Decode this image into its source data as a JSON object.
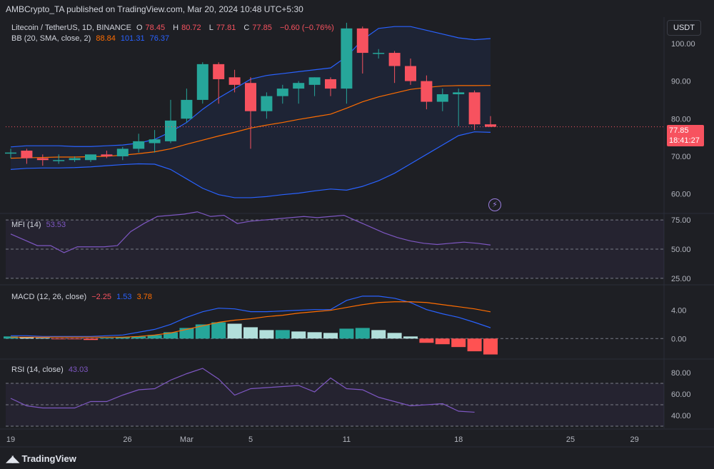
{
  "header": {
    "publisher": "AMBCrypto_TA published on TradingView.com, Mar 20, 2024 10:48 UTC+5:30"
  },
  "currency_button": "USDT",
  "main_legend": {
    "symbol": "Litecoin / TetherUS, 1D, BINANCE",
    "o_label": "O",
    "o_value": "78.45",
    "h_label": "H",
    "h_value": "80.72",
    "l_label": "L",
    "l_value": "77.81",
    "c_label": "C",
    "c_value": "77.85",
    "change": "−0.60 (−0.76%)",
    "bb_label": "BB (20, SMA, close, 2)",
    "bb_basis": "88.84",
    "bb_upper": "101.31",
    "bb_lower": "76.37"
  },
  "price_tag": {
    "price": "77.85",
    "countdown": "18:41:27"
  },
  "mfi_legend": {
    "label": "MFI (14)",
    "value": "53.53"
  },
  "macd_legend": {
    "label": "MACD (12, 26, close)",
    "hist": "−2.25",
    "macd": "1.53",
    "signal": "3.78"
  },
  "rsi_legend": {
    "label": "RSI (14, close)",
    "value": "43.03"
  },
  "brand": "TradingView",
  "colors": {
    "up": "#26a69a",
    "down": "#f7525f",
    "bb_band": "#2962ff",
    "bb_basis": "#ff6d00",
    "osc": "#7e57c2"
  },
  "chart_data": [
    {
      "type": "candlestick",
      "title": "Litecoin / TetherUS, 1D, BINANCE",
      "ylim": [
        55,
        107
      ],
      "y_ticks": [
        "100.00",
        "90.00",
        "80.00",
        "70.00",
        "60.00"
      ],
      "x_ticks": [
        "19",
        "26",
        "Mar",
        "5",
        "11",
        "18",
        "25",
        "29"
      ],
      "candles": [
        {
          "o": 71.0,
          "h": 72.0,
          "l": 69.5,
          "c": 71.0
        },
        {
          "o": 71.5,
          "h": 72.0,
          "l": 68.0,
          "c": 69.5
        },
        {
          "o": 69.5,
          "h": 70.5,
          "l": 67.5,
          "c": 69.0
        },
        {
          "o": 69.0,
          "h": 70.5,
          "l": 68.0,
          "c": 69.0
        },
        {
          "o": 69.0,
          "h": 70.0,
          "l": 68.5,
          "c": 69.5
        },
        {
          "o": 69.0,
          "h": 70.5,
          "l": 68.5,
          "c": 70.5
        },
        {
          "o": 70.5,
          "h": 71.5,
          "l": 69.5,
          "c": 70.0
        },
        {
          "o": 70.0,
          "h": 72.5,
          "l": 69.0,
          "c": 72.0
        },
        {
          "o": 72.0,
          "h": 76.0,
          "l": 71.0,
          "c": 74.0
        },
        {
          "o": 73.5,
          "h": 77.0,
          "l": 71.0,
          "c": 74.5
        },
        {
          "o": 74.0,
          "h": 85.0,
          "l": 73.5,
          "c": 79.5
        },
        {
          "o": 80.0,
          "h": 88.0,
          "l": 79.0,
          "c": 85.0
        },
        {
          "o": 85.0,
          "h": 95.0,
          "l": 84.0,
          "c": 94.5
        },
        {
          "o": 94.5,
          "h": 95.0,
          "l": 84.0,
          "c": 90.5
        },
        {
          "o": 91.0,
          "h": 93.0,
          "l": 87.0,
          "c": 89.0
        },
        {
          "o": 89.5,
          "h": 91.0,
          "l": 72.0,
          "c": 82.0
        },
        {
          "o": 82.0,
          "h": 87.0,
          "l": 80.0,
          "c": 86.0
        },
        {
          "o": 86.0,
          "h": 89.0,
          "l": 84.0,
          "c": 88.0
        },
        {
          "o": 88.0,
          "h": 90.0,
          "l": 84.0,
          "c": 89.5
        },
        {
          "o": 89.0,
          "h": 91.0,
          "l": 86.0,
          "c": 91.0
        },
        {
          "o": 90.5,
          "h": 91.0,
          "l": 86.0,
          "c": 88.0
        },
        {
          "o": 88.0,
          "h": 105.5,
          "l": 84.0,
          "c": 104.0
        },
        {
          "o": 104.0,
          "h": 104.5,
          "l": 92.0,
          "c": 97.5
        },
        {
          "o": 97.5,
          "h": 98.5,
          "l": 96.0,
          "c": 97.5
        },
        {
          "o": 97.5,
          "h": 98.0,
          "l": 89.5,
          "c": 94.0
        },
        {
          "o": 94.0,
          "h": 96.0,
          "l": 89.0,
          "c": 90.0
        },
        {
          "o": 90.0,
          "h": 91.5,
          "l": 82.5,
          "c": 84.5
        },
        {
          "o": 84.5,
          "h": 88.0,
          "l": 82.0,
          "c": 86.5
        },
        {
          "o": 86.5,
          "h": 88.0,
          "l": 78.0,
          "c": 87.0
        },
        {
          "o": 87.0,
          "h": 87.5,
          "l": 77.0,
          "c": 78.5
        },
        {
          "o": 78.5,
          "h": 80.7,
          "l": 77.8,
          "c": 77.85
        }
      ],
      "bb_upper": [
        72.5,
        72.8,
        72.8,
        72.8,
        72.6,
        72.6,
        72.8,
        73.0,
        73.5,
        74.5,
        76.5,
        79.0,
        82.5,
        85.5,
        88.0,
        90.5,
        91.5,
        92.0,
        92.5,
        93.0,
        93.5,
        96.5,
        101.0,
        104.0,
        104.5,
        104.5,
        103.5,
        102.5,
        101.5,
        101.0,
        101.3
      ],
      "bb_basis": [
        69.5,
        69.6,
        69.7,
        69.8,
        69.8,
        69.9,
        70.0,
        70.3,
        70.7,
        71.2,
        72.0,
        73.2,
        74.3,
        75.4,
        76.4,
        77.5,
        78.3,
        79.0,
        79.8,
        80.5,
        81.2,
        82.8,
        84.5,
        85.8,
        86.8,
        87.8,
        88.3,
        88.7,
        88.8,
        88.8,
        88.84
      ],
      "bb_lower": [
        66.5,
        66.8,
        66.9,
        66.9,
        67.0,
        67.2,
        67.5,
        67.8,
        68.0,
        67.9,
        66.5,
        64.0,
        61.5,
        59.8,
        59.0,
        59.0,
        59.3,
        59.8,
        60.2,
        60.8,
        61.3,
        61.0,
        62.0,
        63.5,
        65.5,
        68.0,
        70.5,
        73.0,
        75.5,
        76.5,
        76.37
      ]
    },
    {
      "type": "line",
      "title": "MFI (14)",
      "ylim": [
        20,
        80
      ],
      "y_ticks": [
        "75.00",
        "50.00",
        "25.00"
      ],
      "bands": [
        25,
        50,
        75
      ],
      "values": [
        63,
        58,
        53,
        53,
        47,
        52,
        52,
        52,
        53,
        65,
        72,
        78,
        79,
        80,
        82,
        78,
        79,
        72,
        74,
        75,
        76,
        77,
        78,
        77,
        78,
        79,
        74,
        69,
        64,
        60,
        57,
        55,
        54,
        55,
        56,
        55,
        53.53
      ]
    },
    {
      "type": "macd",
      "title": "MACD (12, 26, close)",
      "ylim": [
        -2.8,
        7.5
      ],
      "y_ticks": [
        "4.00",
        "0.00"
      ],
      "histogram": [
        0.3,
        0.2,
        0.1,
        -0.1,
        -0.1,
        -0.2,
        0.1,
        0.2,
        0.3,
        0.5,
        0.9,
        1.5,
        2.0,
        2.3,
        2.1,
        1.6,
        1.2,
        1.2,
        1.0,
        0.9,
        0.8,
        1.4,
        1.5,
        1.2,
        0.8,
        0.3,
        -0.6,
        -0.8,
        -1.2,
        -1.8,
        -2.25
      ],
      "macd": [
        0.4,
        0.4,
        0.3,
        0.3,
        0.3,
        0.3,
        0.4,
        0.5,
        0.9,
        1.3,
        2.0,
        3.0,
        3.8,
        4.3,
        4.2,
        3.8,
        3.8,
        3.9,
        4.0,
        4.1,
        4.1,
        5.4,
        6.0,
        6.0,
        5.7,
        5.1,
        4.1,
        3.5,
        3.0,
        2.3,
        1.53
      ],
      "signal": [
        0.2,
        0.2,
        0.2,
        0.2,
        0.2,
        0.2,
        0.2,
        0.2,
        0.3,
        0.5,
        0.8,
        1.3,
        1.8,
        2.3,
        2.6,
        2.8,
        3.1,
        3.3,
        3.6,
        3.8,
        4.0,
        4.4,
        4.8,
        5.1,
        5.2,
        5.2,
        5.1,
        4.8,
        4.5,
        4.2,
        3.78
      ]
    },
    {
      "type": "line",
      "title": "RSI (14, close)",
      "ylim": [
        28,
        92
      ],
      "y_ticks": [
        "80.00",
        "60.00",
        "40.00"
      ],
      "bands": [
        30,
        50,
        70
      ],
      "values": [
        56,
        49,
        47,
        47,
        47,
        53,
        53,
        59,
        64,
        65,
        73,
        79,
        84,
        74,
        59,
        65,
        66,
        67,
        68,
        62,
        75,
        65,
        64,
        57,
        53,
        49,
        50,
        51,
        44,
        43.03
      ]
    }
  ]
}
